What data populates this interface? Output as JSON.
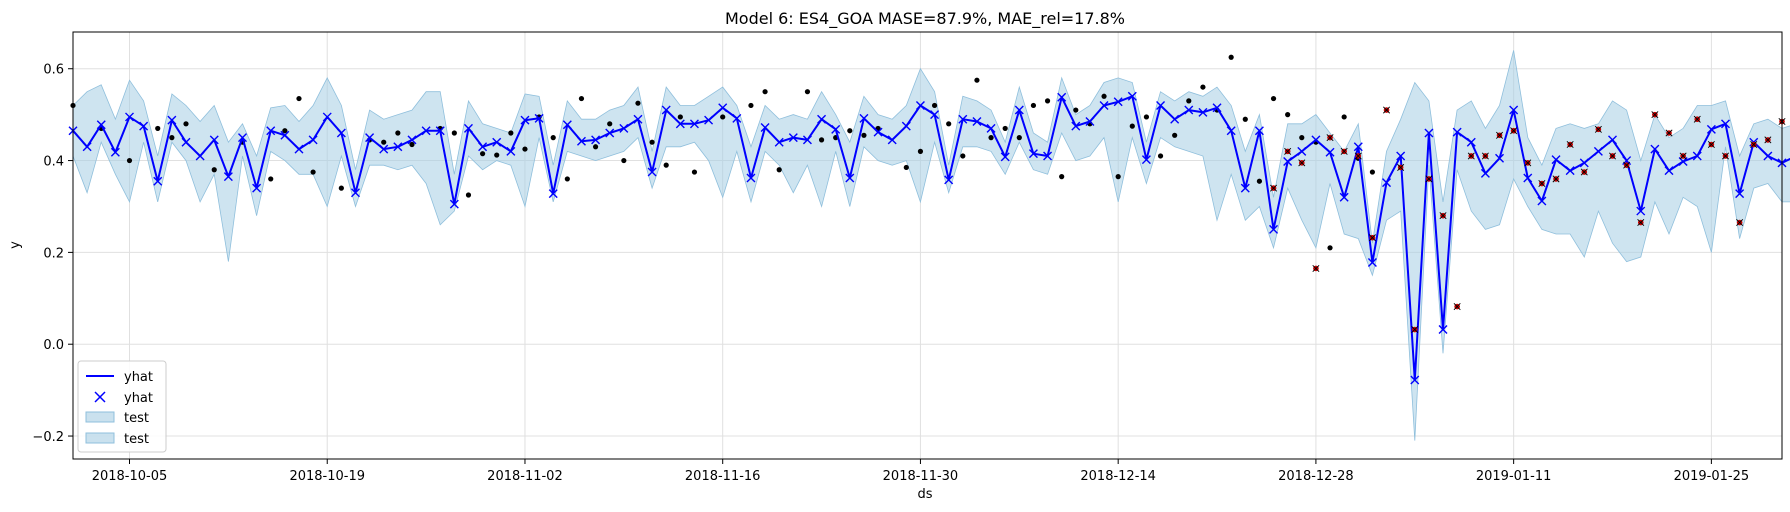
{
  "chart_data": {
    "type": "line",
    "title": "Model 6: ES4_GOA MASE=87.9%, MAE_rel=17.8%",
    "xlabel": "ds",
    "ylabel": "y",
    "x_start": "2018-10-01",
    "x_step_days": 1,
    "xlim": [
      "2018-10-01",
      "2019-01-30"
    ],
    "ylim": [
      -0.25,
      0.68
    ],
    "grid": true,
    "legend_position": "bottom-left",
    "x_ticks": [
      "2018-10-05",
      "2018-10-19",
      "2018-11-02",
      "2018-11-16",
      "2018-11-30",
      "2018-12-14",
      "2018-12-28",
      "2019-01-11",
      "2019-01-25"
    ],
    "y_ticks": [
      "−0.2",
      "0.0",
      "0.2",
      "0.4",
      "0.6"
    ],
    "y_tick_values": [
      -0.2,
      0.0,
      0.2,
      0.4,
      0.6
    ],
    "legend": [
      {
        "label": "yhat",
        "kind": "line",
        "color": "#0000ff"
      },
      {
        "label": "yhat",
        "kind": "marker-x",
        "color": "#0000ff"
      },
      {
        "label": "test",
        "kind": "band",
        "color": "#add8e6"
      },
      {
        "label": "test",
        "kind": "band",
        "color": "#add8e6"
      }
    ],
    "colors": {
      "forecast_line": "#0000ff",
      "band_fill": "#a6cde3",
      "band_edge": "#8fbfdc",
      "history_points": "#000000",
      "test_points": "#cc0000",
      "grid": "#e0e0e0"
    },
    "series": [
      {
        "name": "yhat",
        "values": [
          0.465,
          0.43,
          0.478,
          0.418,
          0.495,
          0.475,
          0.355,
          0.488,
          0.44,
          0.41,
          0.445,
          0.365,
          0.45,
          0.34,
          0.465,
          0.455,
          0.425,
          0.445,
          0.495,
          0.46,
          0.33,
          0.45,
          0.425,
          0.43,
          0.445,
          0.465,
          0.465,
          0.305,
          0.47,
          0.43,
          0.44,
          0.42,
          0.488,
          0.492,
          0.328,
          0.478,
          0.442,
          0.445,
          0.46,
          0.47,
          0.49,
          0.375,
          0.51,
          0.48,
          0.48,
          0.488,
          0.515,
          0.492,
          0.362,
          0.472,
          0.44,
          0.45,
          0.445,
          0.49,
          0.468,
          0.362,
          0.492,
          0.462,
          0.445,
          0.475,
          0.52,
          0.5,
          0.358,
          0.49,
          0.485,
          0.47,
          0.408,
          0.51,
          0.415,
          0.41,
          0.538,
          0.475,
          0.485,
          0.52,
          0.528,
          0.54,
          0.402,
          0.52,
          0.49,
          0.51,
          0.505,
          0.515,
          0.465,
          0.34,
          0.465,
          0.25,
          0.398,
          0.42,
          0.445,
          0.418,
          0.32,
          0.43,
          0.178,
          0.352,
          0.41,
          -0.078,
          0.46,
          0.032,
          0.462,
          0.44,
          0.372,
          0.405,
          0.51,
          0.362,
          0.312,
          0.402,
          0.378,
          0.395,
          0.42,
          0.445,
          0.4,
          0.29,
          0.425,
          0.378,
          0.398,
          0.41,
          0.468,
          0.48,
          0.328,
          0.44,
          0.41,
          0.395,
          0.41
        ],
        "lower": [
          0.41,
          0.33,
          0.44,
          0.37,
          0.31,
          0.44,
          0.31,
          0.44,
          0.4,
          0.31,
          0.37,
          0.18,
          0.41,
          0.28,
          0.42,
          0.4,
          0.37,
          0.37,
          0.3,
          0.41,
          0.3,
          0.39,
          0.39,
          0.38,
          0.39,
          0.35,
          0.26,
          0.29,
          0.41,
          0.38,
          0.4,
          0.39,
          0.3,
          0.45,
          0.31,
          0.42,
          0.41,
          0.4,
          0.41,
          0.42,
          0.45,
          0.34,
          0.43,
          0.43,
          0.44,
          0.4,
          0.32,
          0.42,
          0.31,
          0.42,
          0.39,
          0.33,
          0.39,
          0.3,
          0.42,
          0.3,
          0.43,
          0.4,
          0.39,
          0.4,
          0.31,
          0.44,
          0.33,
          0.43,
          0.43,
          0.42,
          0.37,
          0.44,
          0.38,
          0.37,
          0.46,
          0.4,
          0.41,
          0.45,
          0.31,
          0.45,
          0.35,
          0.45,
          0.43,
          0.42,
          0.41,
          0.27,
          0.37,
          0.27,
          0.3,
          0.21,
          0.34,
          0.27,
          0.21,
          0.35,
          0.24,
          0.23,
          0.15,
          0.27,
          0.29,
          -0.21,
          0.39,
          -0.02,
          0.38,
          0.29,
          0.25,
          0.26,
          0.36,
          0.3,
          0.25,
          0.24,
          0.24,
          0.19,
          0.29,
          0.22,
          0.18,
          0.19,
          0.31,
          0.24,
          0.32,
          0.3,
          0.2,
          0.43,
          0.23,
          0.34,
          0.35,
          0.31,
          0.31
        ],
        "upper": [
          0.52,
          0.55,
          0.565,
          0.49,
          0.575,
          0.53,
          0.41,
          0.545,
          0.52,
          0.485,
          0.52,
          0.44,
          0.48,
          0.41,
          0.515,
          0.52,
          0.485,
          0.52,
          0.58,
          0.52,
          0.38,
          0.51,
          0.49,
          0.5,
          0.51,
          0.55,
          0.55,
          0.37,
          0.53,
          0.48,
          0.47,
          0.46,
          0.545,
          0.54,
          0.39,
          0.53,
          0.49,
          0.49,
          0.51,
          0.52,
          0.56,
          0.42,
          0.56,
          0.52,
          0.52,
          0.54,
          0.56,
          0.52,
          0.43,
          0.52,
          0.49,
          0.5,
          0.49,
          0.55,
          0.5,
          0.44,
          0.54,
          0.5,
          0.49,
          0.52,
          0.6,
          0.55,
          0.39,
          0.54,
          0.53,
          0.51,
          0.44,
          0.56,
          0.46,
          0.44,
          0.58,
          0.5,
          0.52,
          0.57,
          0.58,
          0.57,
          0.44,
          0.55,
          0.53,
          0.55,
          0.54,
          0.56,
          0.52,
          0.42,
          0.5,
          0.32,
          0.48,
          0.48,
          0.5,
          0.46,
          0.42,
          0.48,
          0.22,
          0.42,
          0.49,
          0.57,
          0.53,
          0.31,
          0.51,
          0.53,
          0.47,
          0.52,
          0.64,
          0.45,
          0.39,
          0.47,
          0.48,
          0.47,
          0.48,
          0.53,
          0.51,
          0.4,
          0.5,
          0.45,
          0.47,
          0.52,
          0.52,
          0.53,
          0.41,
          0.48,
          0.49,
          0.47,
          0.48
        ]
      },
      {
        "name": "",
        "x_offsets": [
          0,
          2,
          4,
          6,
          7,
          8,
          10,
          12,
          14,
          15,
          16,
          17,
          19,
          21,
          22,
          23,
          24,
          26,
          27,
          28,
          29,
          30,
          31,
          32,
          33,
          34,
          35,
          36,
          37,
          38,
          39,
          40,
          41,
          42,
          43,
          44,
          46,
          48,
          49,
          50,
          52,
          53,
          54,
          55,
          56,
          57,
          59,
          60,
          61,
          62,
          63,
          64,
          65,
          66,
          67,
          68,
          69,
          70,
          71,
          72,
          73,
          74,
          75,
          76,
          77,
          78,
          79,
          80,
          81,
          82,
          83,
          84,
          85,
          86,
          87,
          88,
          89,
          90,
          91,
          92
        ],
        "values": [
          0.52,
          0.47,
          0.4,
          0.47,
          0.45,
          0.48,
          0.38,
          0.44,
          0.36,
          0.465,
          0.535,
          0.375,
          0.34,
          0.445,
          0.44,
          0.46,
          0.435,
          0.47,
          0.46,
          0.325,
          0.415,
          0.412,
          0.46,
          0.425,
          0.495,
          0.45,
          0.36,
          0.535,
          0.43,
          0.48,
          0.4,
          0.525,
          0.44,
          0.39,
          0.495,
          0.375,
          0.495,
          0.52,
          0.55,
          0.38,
          0.55,
          0.445,
          0.45,
          0.465,
          0.455,
          0.47,
          0.385,
          0.42,
          0.52,
          0.48,
          0.41,
          0.575,
          0.45,
          0.47,
          0.45,
          0.52,
          0.53,
          0.365,
          0.51,
          0.48,
          0.54,
          0.365,
          0.475,
          0.495,
          0.41,
          0.455,
          0.53,
          0.56,
          0.51,
          0.625,
          0.49,
          0.355,
          0.535,
          0.5,
          0.45,
          0.44,
          0.21,
          0.495,
          0.405,
          0.375
        ]
      },
      {
        "name": "",
        "x_offsets": [
          85,
          86,
          87,
          88,
          89,
          90,
          91,
          92,
          93,
          94,
          95,
          96,
          97,
          98,
          99,
          100,
          101,
          102,
          103,
          104,
          105,
          106,
          107,
          108,
          109,
          110,
          111,
          112,
          113,
          114,
          115,
          116,
          117,
          118,
          119,
          120,
          121,
          122
        ],
        "values": [
          0.34,
          0.42,
          0.395,
          0.165,
          0.45,
          0.42,
          0.41,
          0.232,
          0.51,
          0.385,
          0.032,
          0.36,
          0.28,
          0.082,
          0.41,
          0.41,
          0.455,
          0.465,
          0.395,
          0.35,
          0.36,
          0.435,
          0.375,
          0.468,
          0.41,
          0.39,
          0.265,
          0.5,
          0.46,
          0.41,
          0.49,
          0.435,
          0.41,
          0.265,
          0.435,
          0.445,
          0.485,
          0.44
        ]
      }
    ]
  }
}
